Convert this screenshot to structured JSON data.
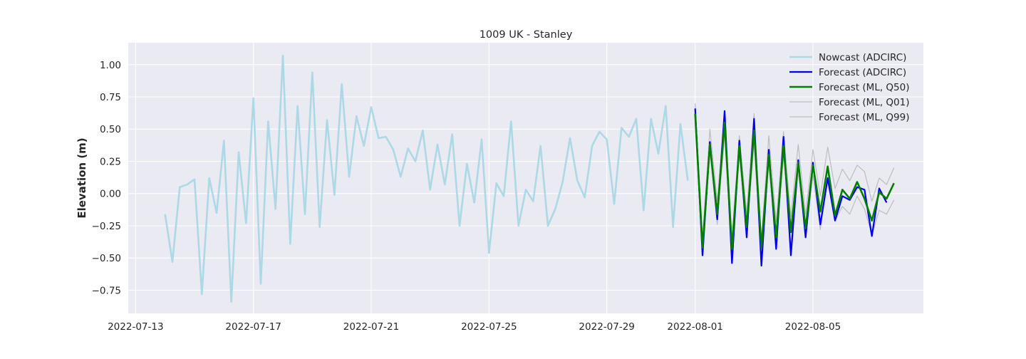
{
  "chart_data": {
    "type": "line",
    "title": "1009 UK - Stanley",
    "xlabel": "",
    "ylabel": "Elevation (m)",
    "xlim": [
      "2022-07-12T18:00",
      "2022-08-08T18:00"
    ],
    "ylim": [
      -0.93,
      1.17
    ],
    "x_ticks": [
      "2022-07-13",
      "2022-07-17",
      "2022-07-21",
      "2022-07-25",
      "2022-07-29",
      "2022-08-01",
      "2022-08-05"
    ],
    "y_ticks": [
      -0.75,
      -0.5,
      -0.25,
      0.0,
      0.25,
      0.5,
      0.75,
      1.0
    ],
    "y_tick_labels": [
      "−0.75",
      "−0.50",
      "−0.25",
      "0.00",
      "0.25",
      "0.50",
      "0.75",
      "1.00"
    ],
    "grid": true,
    "legend_position": "top-right",
    "background": "#eaeaf2",
    "series": [
      {
        "name": "Nowcast (ADCIRC)",
        "color": "#add8e6",
        "x": [
          "2022-07-14T00:00",
          "2022-07-14T06:00",
          "2022-07-14T12:00",
          "2022-07-14T18:00",
          "2022-07-15T00:00",
          "2022-07-15T06:00",
          "2022-07-15T12:00",
          "2022-07-15T18:00",
          "2022-07-16T00:00",
          "2022-07-16T06:00",
          "2022-07-16T12:00",
          "2022-07-16T18:00",
          "2022-07-17T00:00",
          "2022-07-17T06:00",
          "2022-07-17T12:00",
          "2022-07-17T18:00",
          "2022-07-18T00:00",
          "2022-07-18T06:00",
          "2022-07-18T12:00",
          "2022-07-18T18:00",
          "2022-07-19T00:00",
          "2022-07-19T06:00",
          "2022-07-19T12:00",
          "2022-07-19T18:00",
          "2022-07-20T00:00",
          "2022-07-20T06:00",
          "2022-07-20T12:00",
          "2022-07-20T18:00",
          "2022-07-21T00:00",
          "2022-07-21T06:00",
          "2022-07-21T12:00",
          "2022-07-21T18:00",
          "2022-07-22T00:00",
          "2022-07-22T06:00",
          "2022-07-22T12:00",
          "2022-07-22T18:00",
          "2022-07-23T00:00",
          "2022-07-23T06:00",
          "2022-07-23T12:00",
          "2022-07-23T18:00",
          "2022-07-24T00:00",
          "2022-07-24T06:00",
          "2022-07-24T12:00",
          "2022-07-24T18:00",
          "2022-07-25T00:00",
          "2022-07-25T06:00",
          "2022-07-25T12:00",
          "2022-07-25T18:00",
          "2022-07-26T00:00",
          "2022-07-26T06:00",
          "2022-07-26T12:00",
          "2022-07-26T18:00",
          "2022-07-27T00:00",
          "2022-07-27T06:00",
          "2022-07-27T12:00",
          "2022-07-27T18:00",
          "2022-07-28T00:00",
          "2022-07-28T06:00",
          "2022-07-28T12:00",
          "2022-07-28T18:00",
          "2022-07-29T00:00",
          "2022-07-29T06:00",
          "2022-07-29T12:00",
          "2022-07-29T18:00",
          "2022-07-30T00:00",
          "2022-07-30T06:00",
          "2022-07-30T12:00",
          "2022-07-30T18:00",
          "2022-07-31T00:00",
          "2022-07-31T06:00",
          "2022-07-31T12:00",
          "2022-07-31T18:00"
        ],
        "values": [
          -0.16,
          -0.53,
          0.05,
          0.07,
          0.11,
          -0.78,
          0.12,
          -0.15,
          0.41,
          -0.84,
          0.32,
          -0.23,
          0.74,
          -0.7,
          0.56,
          -0.12,
          1.07,
          -0.39,
          0.68,
          -0.16,
          0.94,
          -0.26,
          0.57,
          -0.01,
          0.85,
          0.13,
          0.6,
          0.37,
          0.67,
          0.43,
          0.44,
          0.34,
          0.13,
          0.35,
          0.25,
          0.49,
          0.03,
          0.38,
          0.07,
          0.46,
          -0.25,
          0.23,
          -0.07,
          0.42,
          -0.46,
          0.08,
          -0.02,
          0.56,
          -0.25,
          0.03,
          -0.06,
          0.37,
          -0.25,
          -0.12,
          0.09,
          0.43,
          0.1,
          -0.03,
          0.37,
          0.48,
          0.42,
          -0.08,
          0.51,
          0.44,
          0.58,
          -0.13,
          0.58,
          0.31,
          0.68,
          -0.26,
          0.54,
          0.1
        ]
      },
      {
        "name": "Forecast (ADCIRC)",
        "color": "#0000ee",
        "x": [
          "2022-08-01T00:00",
          "2022-08-01T06:00",
          "2022-08-01T12:00",
          "2022-08-01T18:00",
          "2022-08-02T00:00",
          "2022-08-02T06:00",
          "2022-08-02T12:00",
          "2022-08-02T18:00",
          "2022-08-03T00:00",
          "2022-08-03T06:00",
          "2022-08-03T12:00",
          "2022-08-03T18:00",
          "2022-08-04T00:00",
          "2022-08-04T06:00",
          "2022-08-04T12:00",
          "2022-08-04T18:00",
          "2022-08-05T00:00",
          "2022-08-05T06:00",
          "2022-08-05T12:00",
          "2022-08-05T18:00",
          "2022-08-06T00:00",
          "2022-08-06T06:00",
          "2022-08-06T12:00",
          "2022-08-06T18:00",
          "2022-08-07T00:00",
          "2022-08-07T06:00",
          "2022-08-07T12:00",
          "2022-08-07T18:00"
        ],
        "values": [
          0.66,
          -0.48,
          0.4,
          -0.2,
          0.64,
          -0.54,
          0.41,
          -0.34,
          0.58,
          -0.56,
          0.34,
          -0.43,
          0.44,
          -0.48,
          0.26,
          -0.34,
          0.24,
          -0.24,
          0.12,
          -0.21,
          -0.02,
          -0.05,
          0.05,
          0.03,
          -0.33,
          0.04,
          -0.07,
          null
        ]
      },
      {
        "name": "Forecast (ML, Q50)",
        "color": "#008000",
        "x": [
          "2022-08-01T00:00",
          "2022-08-01T06:00",
          "2022-08-01T12:00",
          "2022-08-01T18:00",
          "2022-08-02T00:00",
          "2022-08-02T06:00",
          "2022-08-02T12:00",
          "2022-08-02T18:00",
          "2022-08-03T00:00",
          "2022-08-03T06:00",
          "2022-08-03T12:00",
          "2022-08-03T18:00",
          "2022-08-04T00:00",
          "2022-08-04T06:00",
          "2022-08-04T12:00",
          "2022-08-04T18:00",
          "2022-08-05T00:00",
          "2022-08-05T06:00",
          "2022-08-05T12:00",
          "2022-08-05T18:00",
          "2022-08-06T00:00",
          "2022-08-06T06:00",
          "2022-08-06T12:00",
          "2022-08-06T18:00",
          "2022-08-07T00:00",
          "2022-08-07T06:00",
          "2022-08-07T12:00",
          "2022-08-07T18:00"
        ],
        "values": [
          0.62,
          -0.42,
          0.38,
          -0.16,
          0.55,
          -0.43,
          0.37,
          -0.26,
          0.49,
          -0.42,
          0.3,
          -0.34,
          0.37,
          -0.3,
          0.24,
          -0.27,
          0.22,
          -0.14,
          0.21,
          -0.17,
          0.03,
          -0.04,
          0.09,
          -0.04,
          -0.21,
          0.01,
          -0.04,
          0.08
        ]
      },
      {
        "name": "Forecast (ML, Q01)",
        "color": "#bdbdbd",
        "x": [
          "2022-08-01T00:00",
          "2022-08-01T06:00",
          "2022-08-01T12:00",
          "2022-08-01T18:00",
          "2022-08-02T00:00",
          "2022-08-02T06:00",
          "2022-08-02T12:00",
          "2022-08-02T18:00",
          "2022-08-03T00:00",
          "2022-08-03T06:00",
          "2022-08-03T12:00",
          "2022-08-03T18:00",
          "2022-08-04T00:00",
          "2022-08-04T06:00",
          "2022-08-04T12:00",
          "2022-08-04T18:00",
          "2022-08-05T00:00",
          "2022-08-05T06:00",
          "2022-08-05T12:00",
          "2022-08-05T18:00",
          "2022-08-06T00:00",
          "2022-08-06T06:00",
          "2022-08-06T12:00",
          "2022-08-06T18:00",
          "2022-08-07T00:00",
          "2022-08-07T06:00",
          "2022-08-07T12:00",
          "2022-08-07T18:00"
        ],
        "values": [
          0.55,
          -0.48,
          0.32,
          -0.24,
          0.46,
          -0.52,
          0.3,
          -0.34,
          0.4,
          -0.55,
          0.23,
          -0.42,
          0.3,
          -0.4,
          0.17,
          -0.34,
          0.14,
          -0.28,
          0.1,
          -0.21,
          -0.1,
          -0.16,
          -0.02,
          -0.12,
          -0.32,
          -0.13,
          -0.16,
          -0.05
        ]
      },
      {
        "name": "Forecast (ML, Q99)",
        "color": "#bdbdbd",
        "x": [
          "2022-08-01T00:00",
          "2022-08-01T06:00",
          "2022-08-01T12:00",
          "2022-08-01T18:00",
          "2022-08-02T00:00",
          "2022-08-02T06:00",
          "2022-08-02T12:00",
          "2022-08-02T18:00",
          "2022-08-03T00:00",
          "2022-08-03T06:00",
          "2022-08-03T12:00",
          "2022-08-03T18:00",
          "2022-08-04T00:00",
          "2022-08-04T06:00",
          "2022-08-04T12:00",
          "2022-08-04T18:00",
          "2022-08-05T00:00",
          "2022-08-05T06:00",
          "2022-08-05T12:00",
          "2022-08-05T18:00",
          "2022-08-06T00:00",
          "2022-08-06T06:00",
          "2022-08-06T12:00",
          "2022-08-06T18:00",
          "2022-08-07T00:00",
          "2022-08-07T06:00",
          "2022-08-07T12:00",
          "2022-08-07T18:00"
        ],
        "values": [
          0.7,
          -0.36,
          0.5,
          -0.06,
          0.64,
          -0.36,
          0.45,
          -0.15,
          0.62,
          -0.36,
          0.45,
          -0.22,
          0.48,
          -0.18,
          0.38,
          -0.16,
          0.34,
          -0.02,
          0.36,
          0.04,
          0.19,
          0.1,
          0.22,
          0.17,
          -0.06,
          0.12,
          0.07,
          0.2
        ]
      }
    ]
  }
}
